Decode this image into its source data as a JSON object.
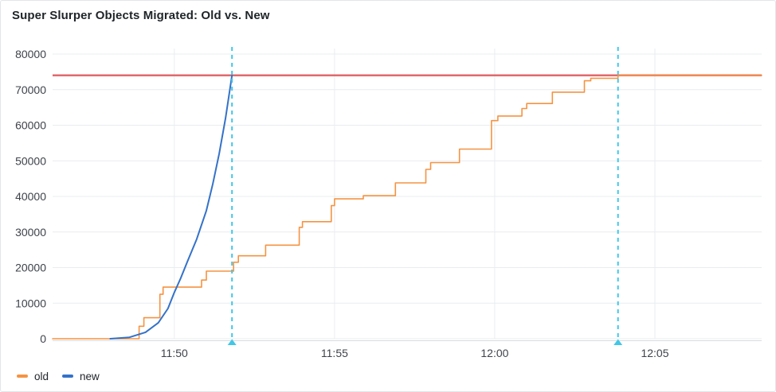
{
  "chart_data": {
    "type": "line",
    "title": "Super Slurper Objects Migrated: Old vs. New",
    "grid": true,
    "legend_position": "bottom-left",
    "x_axis": {
      "range": [
        "11:46:12",
        "12:08:20"
      ],
      "ticks": [
        {
          "label": "11:50",
          "time": "11:50:00"
        },
        {
          "label": "11:55",
          "time": "11:55:00"
        },
        {
          "label": "12:00",
          "time": "12:00:00"
        },
        {
          "label": "12:05",
          "time": "12:05:00"
        }
      ]
    },
    "y_axis": {
      "min": 0,
      "max": 80000,
      "tick_step": 10000,
      "ticks": [
        0,
        10000,
        20000,
        30000,
        40000,
        50000,
        60000,
        70000,
        80000
      ]
    },
    "series": [
      {
        "name": "old",
        "color": "#F59342",
        "line_style": "step-after",
        "points": [
          [
            "11:46:12",
            0
          ],
          [
            "11:48:54",
            3500
          ],
          [
            "11:49:03",
            5900
          ],
          [
            "11:49:33",
            12500
          ],
          [
            "11:49:39",
            14500
          ],
          [
            "11:50:51",
            16500
          ],
          [
            "11:51:00",
            19000
          ],
          [
            "11:51:51",
            21500
          ],
          [
            "11:52:00",
            23300
          ],
          [
            "11:52:51",
            26300
          ],
          [
            "11:53:54",
            31300
          ],
          [
            "11:54:00",
            32900
          ],
          [
            "11:54:54",
            37400
          ],
          [
            "11:55:00",
            39300
          ],
          [
            "11:55:54",
            40200
          ],
          [
            "11:56:54",
            43800
          ],
          [
            "11:57:51",
            47600
          ],
          [
            "11:58:00",
            49500
          ],
          [
            "11:58:54",
            53300
          ],
          [
            "11:59:54",
            61300
          ],
          [
            "12:00:06",
            62600
          ],
          [
            "12:00:51",
            64700
          ],
          [
            "12:01:00",
            66100
          ],
          [
            "12:01:48",
            69300
          ],
          [
            "12:02:48",
            72500
          ],
          [
            "12:03:00",
            73200
          ],
          [
            "12:03:51",
            74000
          ],
          [
            "12:08:20",
            74000
          ]
        ]
      },
      {
        "name": "new",
        "color": "#3472C8",
        "line_style": "linear",
        "points": [
          [
            "11:48:00",
            0
          ],
          [
            "11:48:36",
            400
          ],
          [
            "11:49:06",
            1800
          ],
          [
            "11:49:30",
            4500
          ],
          [
            "11:49:48",
            8500
          ],
          [
            "11:50:00",
            13000
          ],
          [
            "11:50:12",
            17000
          ],
          [
            "11:50:24",
            21500
          ],
          [
            "11:50:42",
            28000
          ],
          [
            "11:51:00",
            36000
          ],
          [
            "11:51:12",
            43500
          ],
          [
            "11:51:24",
            52000
          ],
          [
            "11:51:36",
            62000
          ],
          [
            "11:51:48",
            74000
          ]
        ]
      }
    ],
    "threshold_line": {
      "value": 74000,
      "color": "#E0696C"
    },
    "annotations": [
      {
        "time": "11:51:48",
        "color": "#41C7E8",
        "style": "dashed",
        "marker": "triangle-up"
      },
      {
        "time": "12:03:51",
        "color": "#41C7E8",
        "style": "dashed",
        "marker": "triangle-up"
      }
    ]
  },
  "colors": {
    "background": "#FFFFFF",
    "border": "#E2E5E9",
    "grid": "#EAECEF",
    "axis_line": "#D9DCE0",
    "tick_text": "#3E434A",
    "title_text": "#1F2428"
  }
}
